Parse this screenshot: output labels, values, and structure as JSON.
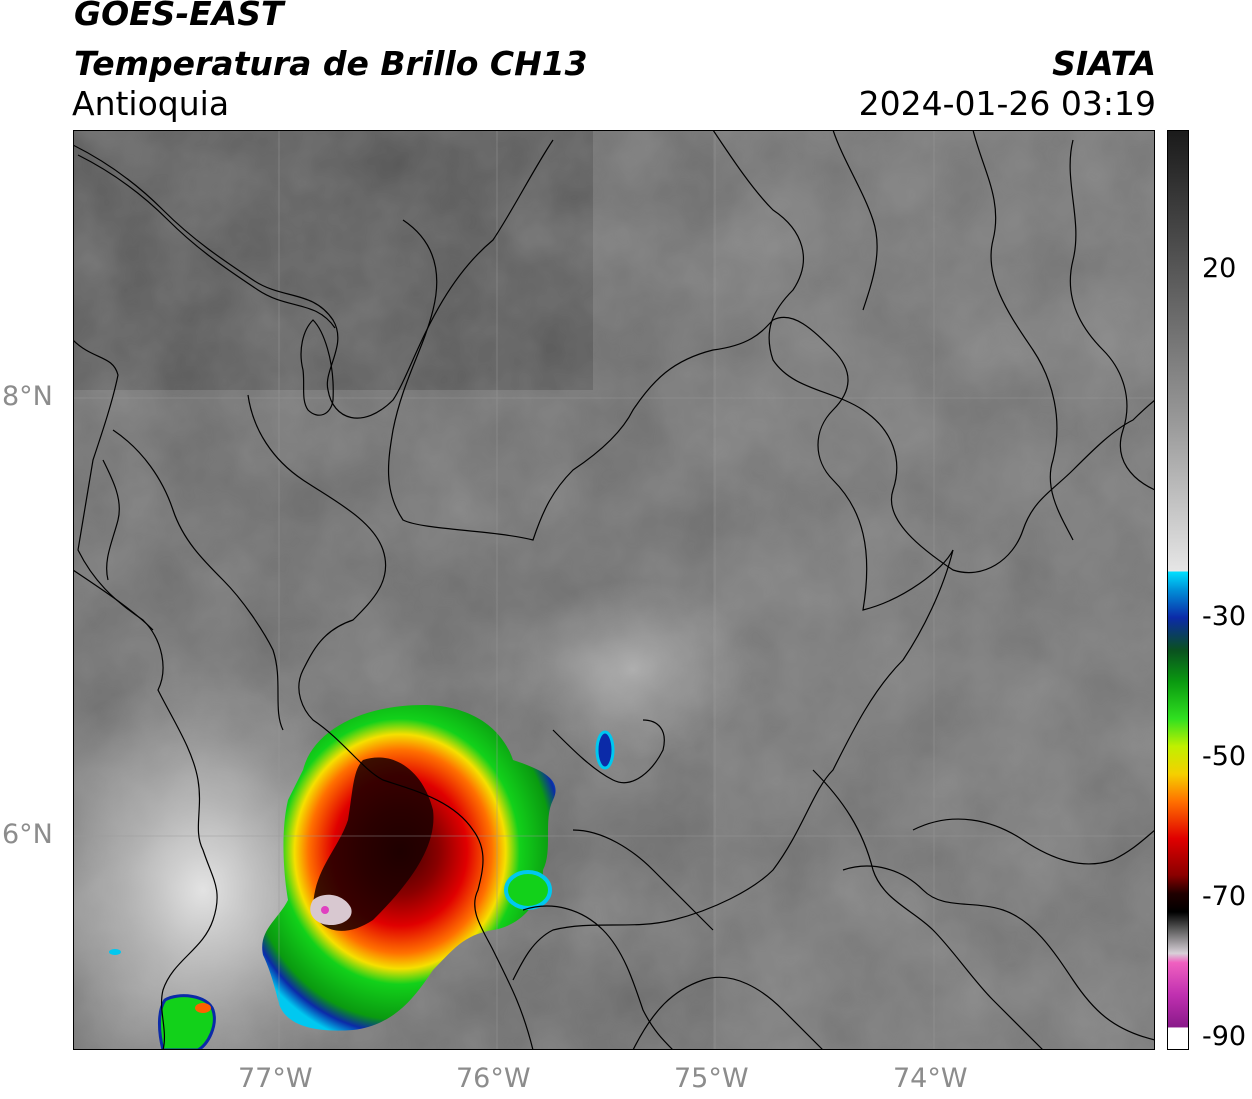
{
  "header": {
    "satellite": "GOES-EAST",
    "product": "Temperatura de Brillo CH13",
    "region": "Antioquia",
    "agency": "SIATA",
    "datetime": "2024-01-26 03:19"
  },
  "map": {
    "latitude_labels": [
      "8°N",
      "6°N"
    ],
    "longitude_labels": [
      "77°W",
      "76°W",
      "75°W",
      "74°W"
    ]
  },
  "colorbar": {
    "tick_labels": [
      "20",
      "-30",
      "-50",
      "-70",
      "-90"
    ],
    "colors": {
      "warm": "#7a7a7a",
      "white": "#f0f0f0",
      "cyan": "#00d8ff",
      "blue": "#0b2aa8",
      "green": "#12d11a",
      "yellow": "#f2f200",
      "orange": "#ff8a00",
      "red": "#e00000",
      "darkred": "#4a0000",
      "black": "#000000",
      "pink": "#e040c0",
      "purple": "#8a1a8a"
    }
  }
}
